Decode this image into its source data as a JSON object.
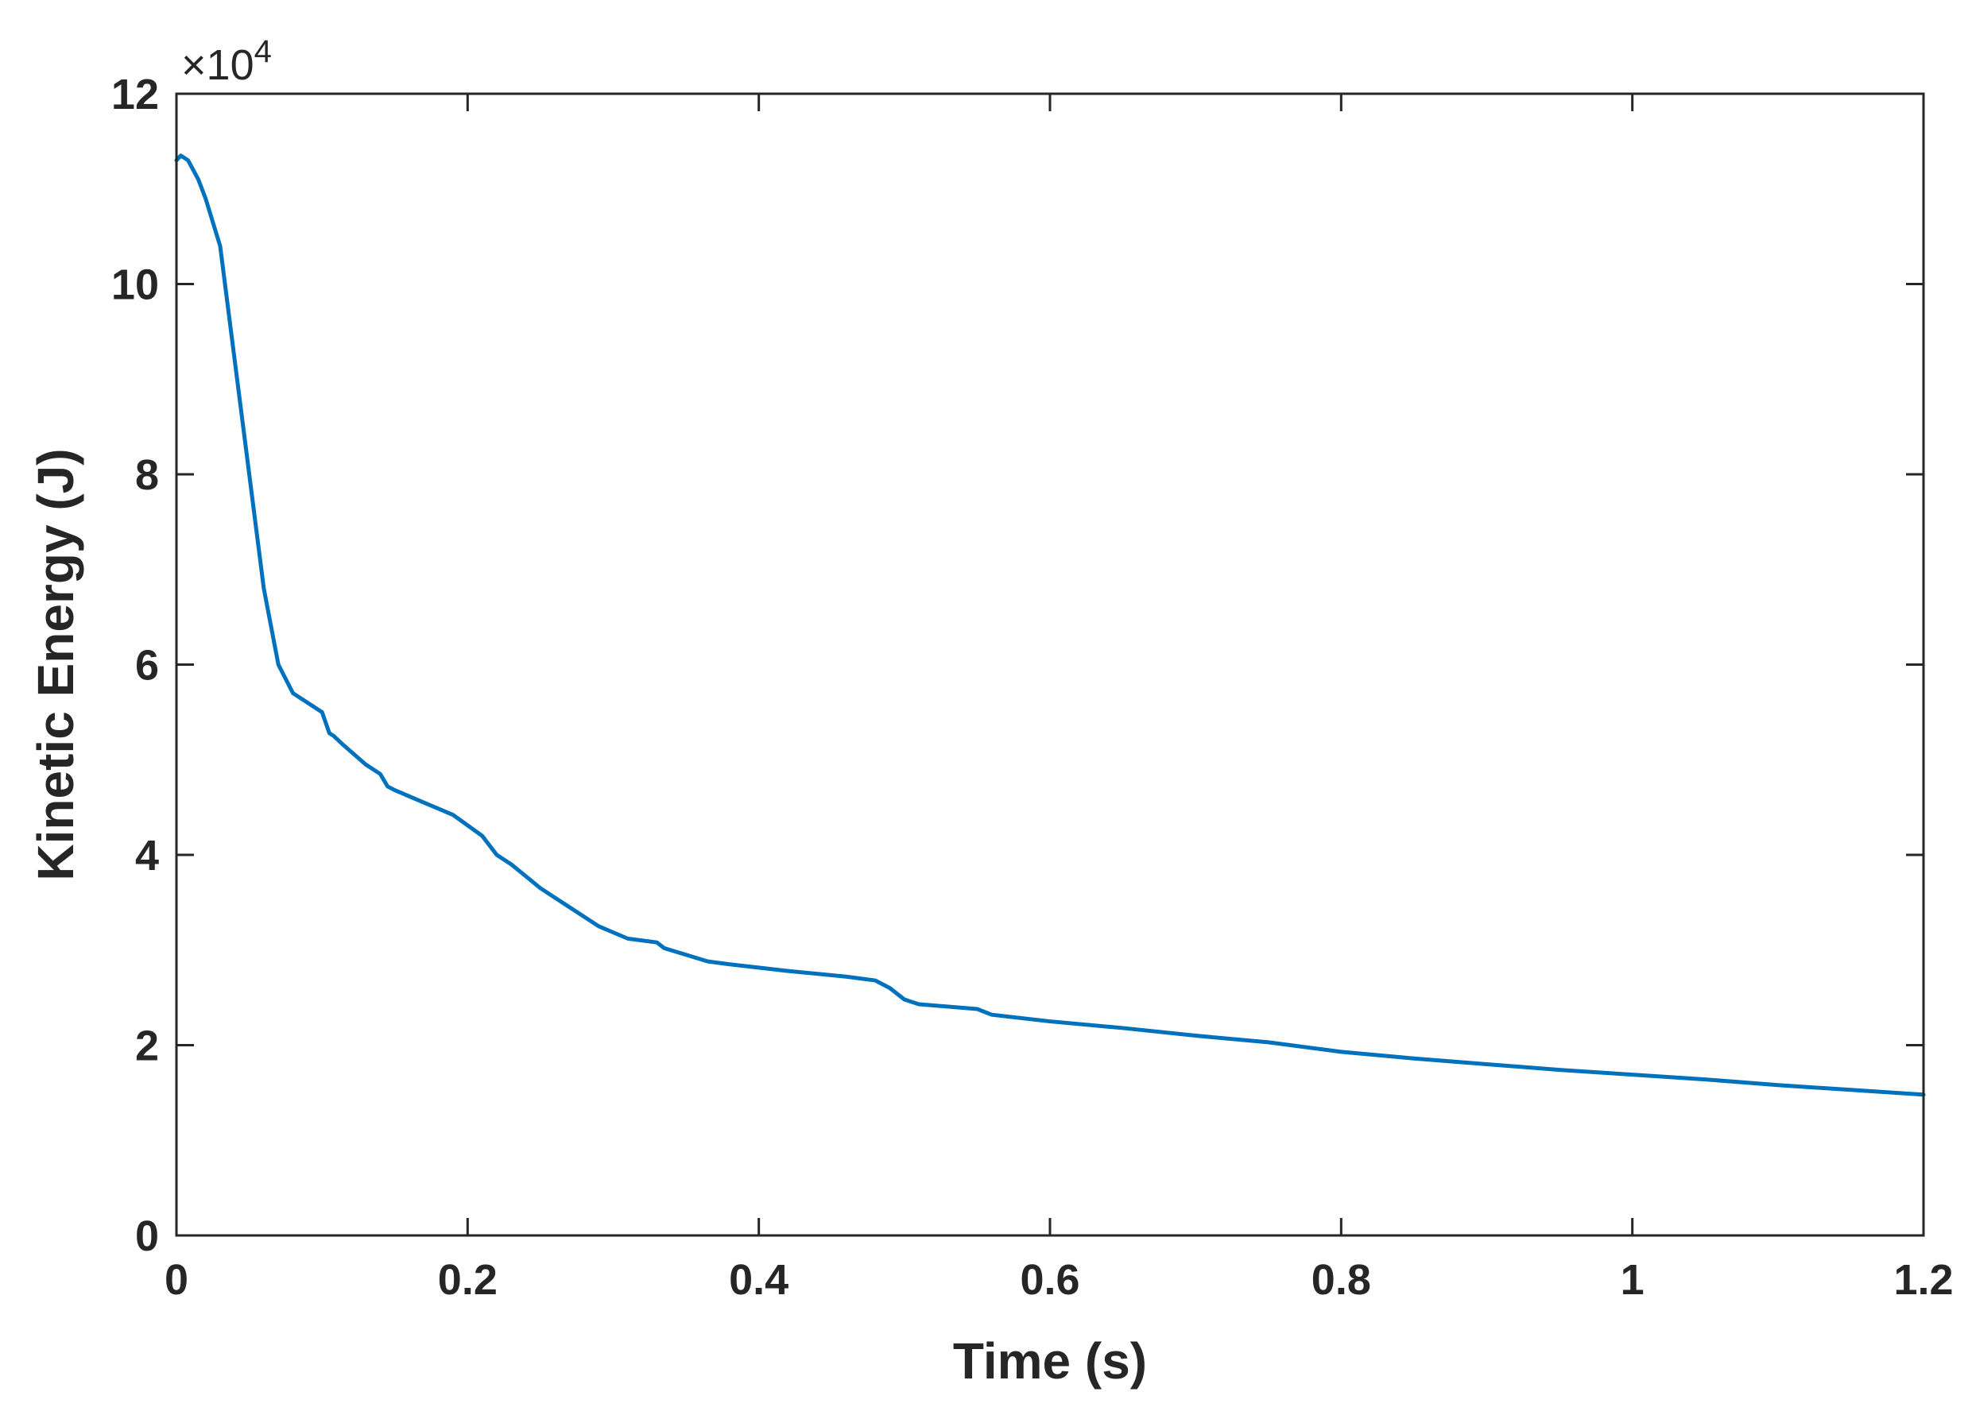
{
  "chart_data": {
    "type": "line",
    "title": "",
    "xlabel": "Time (s)",
    "ylabel": "Kinetic Energy (J)",
    "y_exponent_base": "×10",
    "y_exponent_power": "4",
    "xlim": [
      0,
      1.2
    ],
    "ylim": [
      0,
      12
    ],
    "xticks": [
      0,
      0.2,
      0.4,
      0.6,
      0.8,
      1.0,
      1.2
    ],
    "xtick_labels": [
      "0",
      "0.2",
      "0.4",
      "0.6",
      "0.8",
      "1",
      "1.2"
    ],
    "yticks": [
      0,
      2,
      4,
      6,
      8,
      10,
      12
    ],
    "ytick_labels": [
      "0",
      "2",
      "4",
      "6",
      "8",
      "10",
      "12"
    ],
    "grid": false,
    "line_color": "#0072BD",
    "axis_color": "#262626",
    "series": [
      {
        "x": [
          0.0,
          0.003,
          0.008,
          0.015,
          0.02,
          0.03,
          0.04,
          0.05,
          0.06,
          0.065,
          0.07,
          0.08,
          0.09,
          0.1,
          0.105,
          0.108,
          0.115,
          0.13,
          0.14,
          0.145,
          0.15,
          0.17,
          0.19,
          0.21,
          0.22,
          0.23,
          0.25,
          0.27,
          0.29,
          0.31,
          0.33,
          0.335,
          0.35,
          0.365,
          0.38,
          0.42,
          0.46,
          0.48,
          0.49,
          0.5,
          0.51,
          0.55,
          0.56,
          0.6,
          0.65,
          0.7,
          0.75,
          0.8,
          0.85,
          0.9,
          0.95,
          1.0,
          1.05,
          1.1,
          1.15,
          1.2
        ],
        "y": [
          11.3,
          11.35,
          11.3,
          11.1,
          10.9,
          10.4,
          9.2,
          8.0,
          6.8,
          6.4,
          6.0,
          5.7,
          5.6,
          5.5,
          5.28,
          5.25,
          5.15,
          4.95,
          4.85,
          4.72,
          4.68,
          4.55,
          4.42,
          4.2,
          4.0,
          3.9,
          3.65,
          3.45,
          3.25,
          3.12,
          3.08,
          3.02,
          2.95,
          2.88,
          2.85,
          2.78,
          2.72,
          2.68,
          2.6,
          2.48,
          2.43,
          2.38,
          2.32,
          2.25,
          2.18,
          2.1,
          2.03,
          1.93,
          1.86,
          1.8,
          1.74,
          1.69,
          1.64,
          1.58,
          1.53,
          1.48
        ]
      }
    ]
  }
}
